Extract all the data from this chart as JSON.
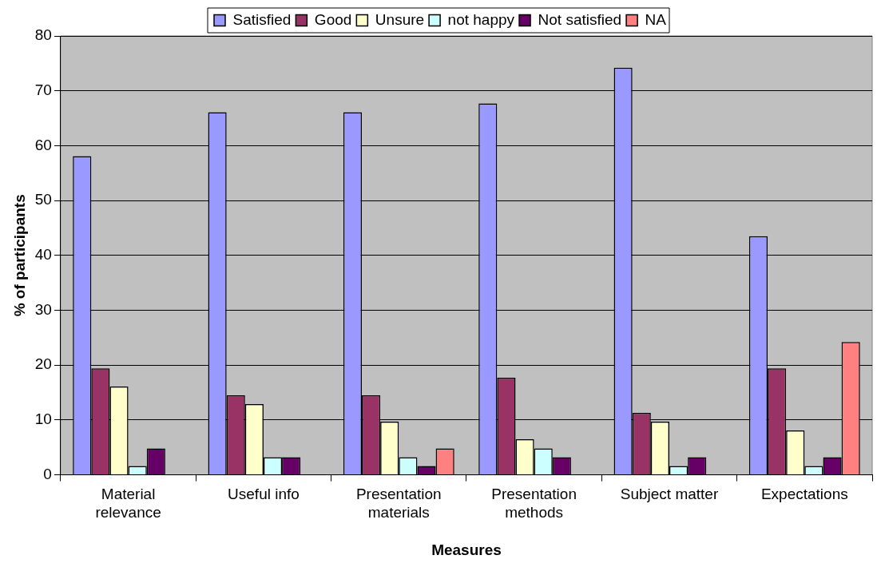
{
  "chart_data": {
    "type": "bar",
    "xlabel": "Measures",
    "ylabel": "% of participants",
    "categories": [
      "Material relevance",
      "Useful info",
      "Presentation materials",
      "Presentation methods",
      "Subject matter",
      "Expectations"
    ],
    "series": [
      {
        "name": "Satisfied",
        "color": "#9999ff",
        "values": [
          58.1,
          66.1,
          66.1,
          67.7,
          74.2,
          43.5
        ]
      },
      {
        "name": "Good",
        "color": "#993366",
        "values": [
          19.4,
          14.5,
          14.5,
          17.7,
          11.3,
          19.4
        ]
      },
      {
        "name": "Unsure",
        "color": "#ffffcc",
        "values": [
          16.1,
          12.9,
          9.7,
          6.5,
          9.7,
          8.1
        ]
      },
      {
        "name": "not happy",
        "color": "#ccffff",
        "values": [
          1.6,
          3.2,
          3.2,
          4.8,
          1.6,
          1.6
        ]
      },
      {
        "name": "Not satisfied",
        "color": "#660066",
        "values": [
          4.8,
          3.2,
          1.6,
          3.2,
          3.2,
          3.2
        ]
      },
      {
        "name": "NA",
        "color": "#ff8080",
        "values": [
          null,
          null,
          4.8,
          null,
          null,
          24.2
        ]
      }
    ],
    "ylim": [
      0,
      80
    ],
    "yticks": [
      0,
      10,
      20,
      30,
      40,
      50,
      60,
      70,
      80
    ],
    "grid": "y",
    "legend": "top"
  }
}
